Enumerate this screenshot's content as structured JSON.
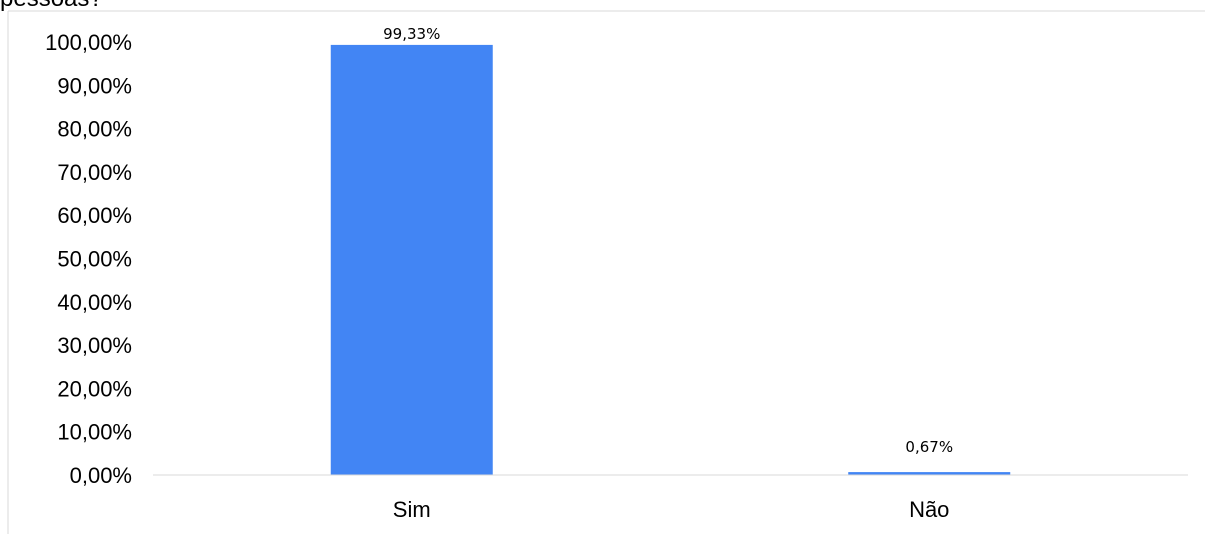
{
  "chart_data": {
    "type": "bar",
    "title_fragment": "pessoas?",
    "categories": [
      "Sim",
      "Não"
    ],
    "values": [
      99.33,
      0.67
    ],
    "data_labels": [
      "99,33%",
      "0,67%"
    ],
    "y_ticks": [
      "0,00%",
      "10,00%",
      "20,00%",
      "30,00%",
      "40,00%",
      "50,00%",
      "60,00%",
      "70,00%",
      "80,00%",
      "90,00%",
      "100,00%"
    ],
    "ylim": [
      0,
      100
    ],
    "ytick_step": 10,
    "bar_color": "#4285F4",
    "grid": false,
    "legend": "none",
    "xlabel": "",
    "ylabel": ""
  }
}
